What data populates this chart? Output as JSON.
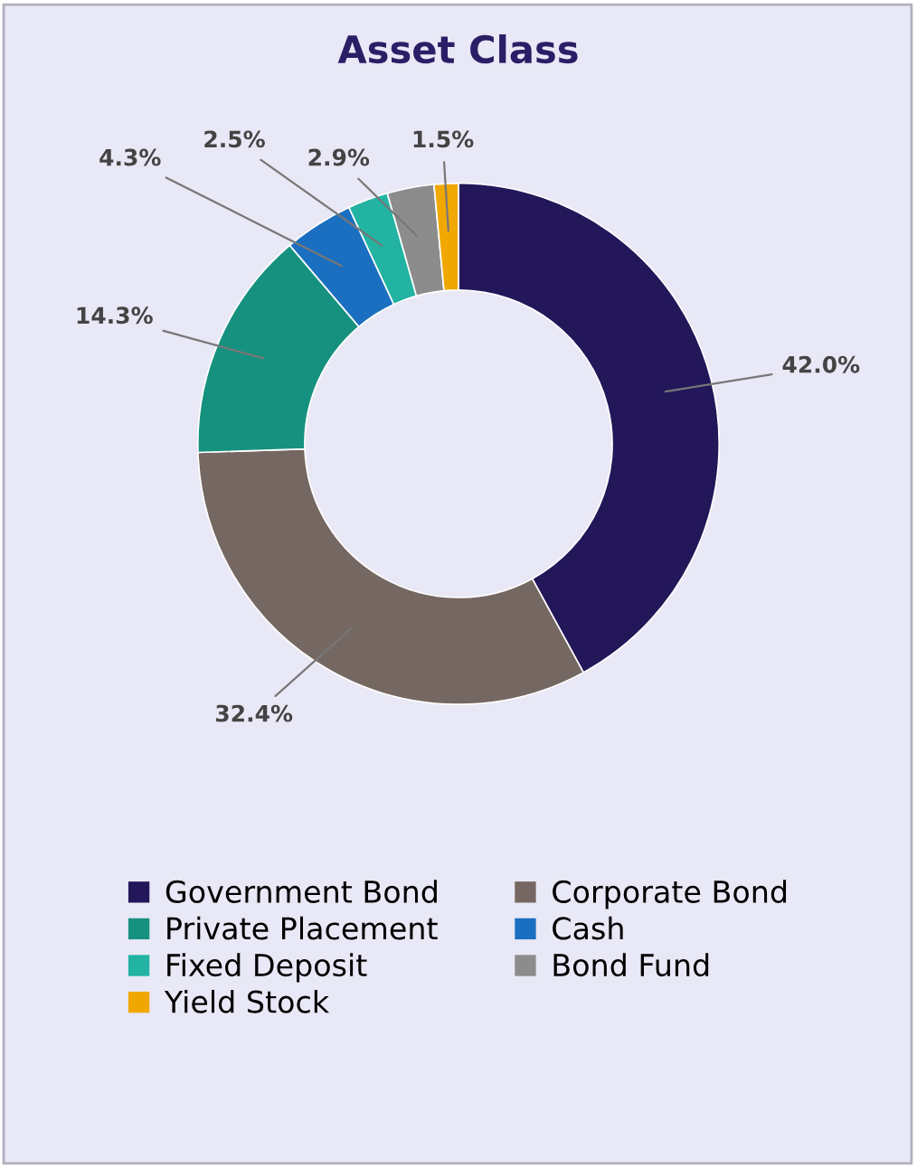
{
  "chart_data": {
    "type": "donut",
    "title": "Asset Class",
    "categories": [
      "Government Bond",
      "Corporate Bond",
      "Private Placement",
      "Cash",
      "Fixed Deposit",
      "Bond Fund",
      "Yield Stock"
    ],
    "values": [
      42.0,
      32.4,
      14.3,
      4.3,
      2.5,
      2.9,
      1.5
    ],
    "colors": [
      "#23175a",
      "#756761",
      "#17917f",
      "#1a6fc0",
      "#22b3a3",
      "#8c8c8c",
      "#f0a800"
    ],
    "value_labels": [
      "42.0%",
      "32.4%",
      "14.3%",
      "4.3%",
      "2.5%",
      "2.9%",
      "1.5%"
    ],
    "legend": "bottom"
  }
}
